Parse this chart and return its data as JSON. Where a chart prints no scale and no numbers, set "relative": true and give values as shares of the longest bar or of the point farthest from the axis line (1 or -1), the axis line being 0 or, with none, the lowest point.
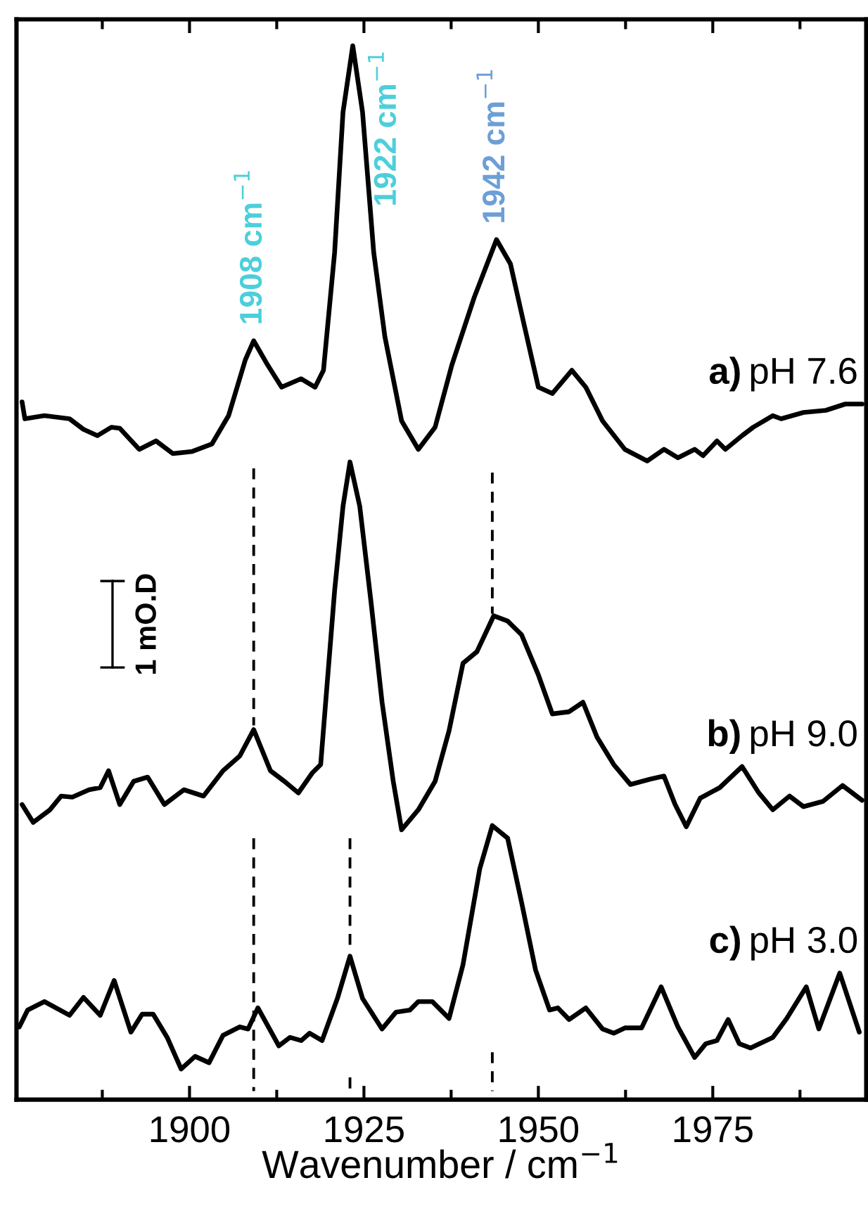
{
  "chart_data": {
    "type": "line",
    "relative": true,
    "xlabel": "Wavenumber / cm$^{−1}$",
    "xlim": [
      1875.2,
      1997
    ],
    "xticks": [
      {
        "value": 1887.5,
        "label": null
      },
      1900,
      {
        "value": 1912.5,
        "label": null
      },
      1925,
      {
        "value": 1937.5,
        "label": null
      },
      1950,
      {
        "value": 1962.5,
        "label": null
      },
      1975,
      {
        "value": 1987.5,
        "label": null
      }
    ],
    "tick_labels": "x",
    "grid": false,
    "legend": false,
    "annotations": [
      {
        "text": "1908 cm$^{−1}$",
        "x": 1909.2,
        "y": 0.72
      },
      {
        "text": "1922 cm$^{−1}$",
        "x": 1923.4,
        "y": 1.0
      },
      {
        "text": "1942 cm$^{−1}$",
        "x": 1944.0,
        "y": 0.816
      },
      "1 mO.D"
    ],
    "series": [
      {
        "name": "a) pH 7.6",
        "color": "#000000",
        "x": [
          1876.0,
          1876.4,
          1879.2,
          1882.8,
          1884.8,
          1886.8,
          1888.8,
          1890.0,
          1892.8,
          1895.2,
          1897.6,
          1900.4,
          1903.2,
          1905.6,
          1908.0,
          1909.2,
          1911.2,
          1913.2,
          1916.0,
          1918.0,
          1919.2,
          1920.8,
          1922.0,
          1923.4,
          1924.8,
          1926.4,
          1928.0,
          1930.4,
          1932.8,
          1935.2,
          1937.6,
          1940.8,
          1944.0,
          1946.0,
          1948.0,
          1950.0,
          1952.0,
          1954.8,
          1956.8,
          1959.2,
          1962.4,
          1965.6,
          1968.0,
          1970.0,
          1972.4,
          1973.6,
          1975.6,
          1976.8,
          1979.2,
          1980.8,
          1983.6,
          1984.8,
          1988.0,
          1991.2,
          1994.0,
          1996.4
        ],
        "values": [
          0.662,
          0.646,
          0.649,
          0.646,
          0.636,
          0.63,
          0.638,
          0.637,
          0.617,
          0.625,
          0.613,
          0.615,
          0.622,
          0.649,
          0.702,
          0.72,
          0.697,
          0.676,
          0.684,
          0.676,
          0.692,
          0.804,
          0.937,
          1.0,
          0.937,
          0.804,
          0.724,
          0.644,
          0.617,
          0.638,
          0.697,
          0.761,
          0.816,
          0.793,
          0.734,
          0.676,
          0.67,
          0.692,
          0.676,
          0.644,
          0.617,
          0.606,
          0.617,
          0.609,
          0.617,
          0.611,
          0.625,
          0.617,
          0.63,
          0.638,
          0.649,
          0.646,
          0.652,
          0.654,
          0.66,
          0.66
        ]
      },
      {
        "name": "b) pH 9.0",
        "color": "#000000",
        "x": [
          1876.0,
          1877.6,
          1880.0,
          1881.6,
          1883.2,
          1885.6,
          1887.2,
          1888.4,
          1890.0,
          1892.0,
          1894.0,
          1896.4,
          1899.2,
          1902.0,
          1904.8,
          1907.2,
          1909.2,
          1911.6,
          1913.6,
          1915.6,
          1917.6,
          1918.8,
          1920.8,
          1922.0,
          1923.0,
          1924.4,
          1926.0,
          1927.6,
          1929.2,
          1930.4,
          1932.8,
          1935.2,
          1937.2,
          1939.2,
          1941.2,
          1943.6,
          1945.6,
          1947.6,
          1950.0,
          1952.0,
          1954.4,
          1956.4,
          1958.4,
          1960.8,
          1963.2,
          1966.0,
          1968.0,
          1969.6,
          1971.2,
          1973.2,
          1976.0,
          1979.2,
          1981.6,
          1983.6,
          1986.0,
          1988.0,
          1990.8,
          1993.6,
          1996.4
        ],
        "values": [
          0.28,
          0.263,
          0.275,
          0.288,
          0.287,
          0.294,
          0.296,
          0.312,
          0.28,
          0.302,
          0.306,
          0.28,
          0.294,
          0.288,
          0.312,
          0.326,
          0.351,
          0.312,
          0.302,
          0.291,
          0.31,
          0.318,
          0.483,
          0.563,
          0.605,
          0.563,
          0.473,
          0.377,
          0.302,
          0.256,
          0.275,
          0.302,
          0.35,
          0.414,
          0.425,
          0.459,
          0.454,
          0.441,
          0.403,
          0.366,
          0.368,
          0.377,
          0.344,
          0.318,
          0.299,
          0.304,
          0.307,
          0.28,
          0.259,
          0.286,
          0.296,
          0.316,
          0.291,
          0.275,
          0.288,
          0.278,
          0.283,
          0.298,
          0.284
        ]
      },
      {
        "name": "c) pH 3.0",
        "color": "#000000",
        "x": [
          1875.6,
          1876.8,
          1879.2,
          1882.8,
          1884.8,
          1887.2,
          1889.2,
          1891.6,
          1893.2,
          1894.8,
          1896.8,
          1898.8,
          1900.8,
          1902.8,
          1904.8,
          1907.2,
          1908.4,
          1909.8,
          1912.8,
          1914.4,
          1916.0,
          1917.2,
          1919.0,
          1921.2,
          1923.0,
          1924.8,
          1927.6,
          1929.6,
          1931.6,
          1932.8,
          1934.8,
          1937.2,
          1939.2,
          1941.6,
          1943.4,
          1945.6,
          1947.6,
          1949.6,
          1951.6,
          1952.8,
          1954.4,
          1956.8,
          1959.2,
          1960.8,
          1962.4,
          1964.8,
          1967.6,
          1970.0,
          1972.4,
          1974.0,
          1975.6,
          1977.2,
          1978.8,
          1980.4,
          1983.6,
          1985.6,
          1988.4,
          1990.2,
          1993.2,
          1996.0
        ],
        "values": [
          0.069,
          0.085,
          0.093,
          0.08,
          0.097,
          0.08,
          0.113,
          0.064,
          0.081,
          0.081,
          0.059,
          0.029,
          0.041,
          0.035,
          0.061,
          0.069,
          0.067,
          0.087,
          0.051,
          0.059,
          0.056,
          0.063,
          0.056,
          0.096,
          0.136,
          0.096,
          0.067,
          0.083,
          0.085,
          0.093,
          0.093,
          0.077,
          0.128,
          0.219,
          0.26,
          0.248,
          0.187,
          0.123,
          0.085,
          0.087,
          0.076,
          0.087,
          0.067,
          0.063,
          0.068,
          0.068,
          0.107,
          0.069,
          0.04,
          0.053,
          0.056,
          0.076,
          0.053,
          0.049,
          0.059,
          0.077,
          0.107,
          0.067,
          0.12,
          0.064
        ]
      },
      {
        "type": "line",
        "line_style": "dashed",
        "color": "#000000",
        "x": [
          1909.2,
          1909.2
        ],
        "values": [
          0.599,
          0.355
        ]
      },
      {
        "type": "line",
        "line_style": "dashed",
        "color": "#000000",
        "x": [
          1943.4,
          1943.4
        ],
        "values": [
          0.595,
          0.461
        ]
      },
      {
        "type": "line",
        "line_style": "dashed",
        "color": "#000000",
        "x": [
          1909.2,
          1909.2
        ],
        "values": [
          0.248,
          0.008
        ]
      },
      {
        "type": "line",
        "line_style": "dashed",
        "color": "#000000",
        "x": [
          1923.0,
          1923.0
        ],
        "values": [
          0.248,
          0.139
        ]
      },
      {
        "type": "line",
        "line_style": "dashed",
        "color": "#000000",
        "x": [
          1923.0,
          1923.0
        ],
        "values": [
          0.021,
          0.008
        ]
      },
      {
        "type": "line",
        "line_style": "dashed",
        "color": "#000000",
        "x": [
          1943.4,
          1943.4
        ],
        "values": [
          0.045,
          0.008
        ]
      }
    ]
  }
}
